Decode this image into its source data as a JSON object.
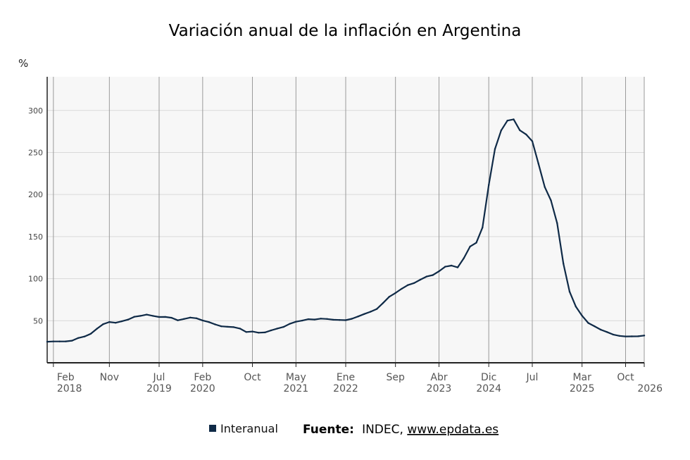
{
  "chart_data": {
    "type": "line",
    "title": "Variación anual de la inflación en Argentina",
    "ylabel": "%",
    "ylim": [
      0,
      340
    ],
    "yticks": [
      50,
      100,
      150,
      200,
      250,
      300
    ],
    "x_start": "2018-01",
    "x_end": "2026-01",
    "grid": true,
    "xticks": [
      {
        "date": "2018-02",
        "month": "Feb",
        "year": "2018"
      },
      {
        "date": "2018-11",
        "month": "Nov",
        "year": ""
      },
      {
        "date": "2019-07",
        "month": "Jul",
        "year": "2019"
      },
      {
        "date": "2020-02",
        "month": "Feb",
        "year": "2020"
      },
      {
        "date": "2020-10",
        "month": "Oct",
        "year": ""
      },
      {
        "date": "2021-05",
        "month": "May",
        "year": "2021"
      },
      {
        "date": "2022-01",
        "month": "Ene",
        "year": "2022"
      },
      {
        "date": "2022-09",
        "month": "Sep",
        "year": ""
      },
      {
        "date": "2023-04",
        "month": "Abr",
        "year": "2023"
      },
      {
        "date": "2023-12",
        "month": "Dic",
        "year": "2024"
      },
      {
        "date": "2024-07",
        "month": "Jul",
        "year": ""
      },
      {
        "date": "2025-03",
        "month": "Mar",
        "year": "2025"
      },
      {
        "date": "2025-10",
        "month": "Oct",
        "year": ""
      },
      {
        "date": "2026-01",
        "month": "",
        "year": "2026"
      }
    ],
    "series": [
      {
        "name": "Interanual",
        "color": "#0f2a47",
        "values": [
          [
            "2018-01",
            25.0
          ],
          [
            "2018-02",
            25.4
          ],
          [
            "2018-03",
            25.4
          ],
          [
            "2018-04",
            25.5
          ],
          [
            "2018-05",
            26.3
          ],
          [
            "2018-06",
            29.5
          ],
          [
            "2018-07",
            31.2
          ],
          [
            "2018-08",
            34.4
          ],
          [
            "2018-09",
            40.5
          ],
          [
            "2018-10",
            45.9
          ],
          [
            "2018-11",
            48.5
          ],
          [
            "2018-12",
            47.6
          ],
          [
            "2019-01",
            49.3
          ],
          [
            "2019-02",
            51.3
          ],
          [
            "2019-03",
            54.7
          ],
          [
            "2019-04",
            55.8
          ],
          [
            "2019-05",
            57.3
          ],
          [
            "2019-06",
            55.8
          ],
          [
            "2019-07",
            54.4
          ],
          [
            "2019-08",
            54.5
          ],
          [
            "2019-09",
            53.5
          ],
          [
            "2019-10",
            50.5
          ],
          [
            "2019-11",
            52.1
          ],
          [
            "2019-12",
            53.8
          ],
          [
            "2020-01",
            52.9
          ],
          [
            "2020-02",
            50.3
          ],
          [
            "2020-03",
            48.4
          ],
          [
            "2020-04",
            45.6
          ],
          [
            "2020-05",
            43.4
          ],
          [
            "2020-06",
            42.8
          ],
          [
            "2020-07",
            42.4
          ],
          [
            "2020-08",
            40.7
          ],
          [
            "2020-09",
            36.6
          ],
          [
            "2020-10",
            37.2
          ],
          [
            "2020-11",
            35.8
          ],
          [
            "2020-12",
            36.1
          ],
          [
            "2021-01",
            38.5
          ],
          [
            "2021-02",
            40.7
          ],
          [
            "2021-03",
            42.6
          ],
          [
            "2021-04",
            46.3
          ],
          [
            "2021-05",
            48.8
          ],
          [
            "2021-06",
            50.2
          ],
          [
            "2021-07",
            51.8
          ],
          [
            "2021-08",
            51.4
          ],
          [
            "2021-09",
            52.5
          ],
          [
            "2021-10",
            52.1
          ],
          [
            "2021-11",
            51.2
          ],
          [
            "2021-12",
            50.9
          ],
          [
            "2022-01",
            50.7
          ],
          [
            "2022-02",
            52.3
          ],
          [
            "2022-03",
            55.1
          ],
          [
            "2022-04",
            58.0
          ],
          [
            "2022-05",
            60.7
          ],
          [
            "2022-06",
            64.0
          ],
          [
            "2022-07",
            71.0
          ],
          [
            "2022-08",
            78.5
          ],
          [
            "2022-09",
            83.0
          ],
          [
            "2022-10",
            88.0
          ],
          [
            "2022-11",
            92.4
          ],
          [
            "2022-12",
            94.8
          ],
          [
            "2023-01",
            98.8
          ],
          [
            "2023-02",
            102.5
          ],
          [
            "2023-03",
            104.3
          ],
          [
            "2023-04",
            108.8
          ],
          [
            "2023-05",
            114.2
          ],
          [
            "2023-06",
            115.6
          ],
          [
            "2023-07",
            113.4
          ],
          [
            "2023-08",
            124.4
          ],
          [
            "2023-09",
            138.3
          ],
          [
            "2023-10",
            142.7
          ],
          [
            "2023-11",
            160.9
          ],
          [
            "2023-12",
            211.4
          ],
          [
            "2024-01",
            254.2
          ],
          [
            "2024-02",
            276.2
          ],
          [
            "2024-03",
            287.9
          ],
          [
            "2024-04",
            289.4
          ],
          [
            "2024-05",
            276.4
          ],
          [
            "2024-06",
            271.5
          ],
          [
            "2024-07",
            263.4
          ],
          [
            "2024-08",
            236.7
          ],
          [
            "2024-09",
            209.0
          ],
          [
            "2024-10",
            193.0
          ],
          [
            "2024-11",
            166.0
          ],
          [
            "2024-12",
            117.8
          ],
          [
            "2025-01",
            84.5
          ],
          [
            "2025-02",
            66.9
          ],
          [
            "2025-03",
            55.9
          ],
          [
            "2025-04",
            47.3
          ],
          [
            "2025-05",
            43.5
          ],
          [
            "2025-06",
            39.4
          ],
          [
            "2025-07",
            36.6
          ],
          [
            "2025-08",
            33.6
          ],
          [
            "2025-09",
            32.0
          ],
          [
            "2025-10",
            31.3
          ],
          [
            "2025-11",
            31.4
          ],
          [
            "2025-12",
            31.5
          ],
          [
            "2026-01",
            32.4
          ]
        ]
      }
    ],
    "legend": {
      "label": "Interanual",
      "placement": "bottom-center"
    }
  },
  "source": {
    "label": "Fuente:",
    "text": "INDEC, ",
    "link": "www.epdata.es"
  }
}
